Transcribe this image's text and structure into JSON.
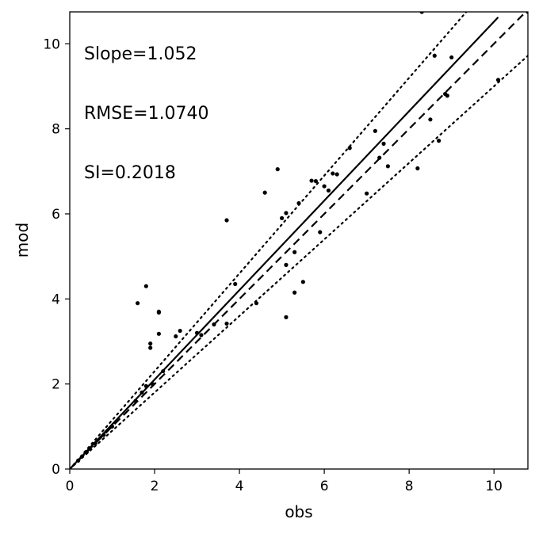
{
  "chart_data": {
    "type": "scatter",
    "xlabel": "obs",
    "ylabel": "mod",
    "xlim": [
      0,
      10.8
    ],
    "ylim": [
      0,
      10.75
    ],
    "xticks": [
      0,
      2,
      4,
      6,
      8,
      10
    ],
    "yticks": [
      0,
      2,
      4,
      6,
      8,
      10
    ],
    "grid": false,
    "annotations": [
      "Slope=1.052",
      "RMSE=1.0740",
      "SI=0.2018"
    ],
    "points": [
      [
        0.2,
        0.2
      ],
      [
        0.4,
        0.4
      ],
      [
        0.6,
        0.6
      ],
      [
        0.8,
        0.8
      ],
      [
        1.0,
        1.0
      ],
      [
        1.55,
        1.6
      ],
      [
        1.6,
        3.9
      ],
      [
        1.7,
        1.8
      ],
      [
        1.8,
        1.95
      ],
      [
        1.8,
        4.3
      ],
      [
        1.9,
        2.85
      ],
      [
        1.9,
        2.95
      ],
      [
        1.95,
        2.0
      ],
      [
        2.1,
        3.7
      ],
      [
        2.1,
        3.68
      ],
      [
        2.1,
        3.18
      ],
      [
        2.2,
        2.3
      ],
      [
        2.5,
        3.12
      ],
      [
        2.6,
        3.25
      ],
      [
        3.0,
        3.2
      ],
      [
        3.1,
        3.15
      ],
      [
        3.4,
        3.4
      ],
      [
        3.7,
        5.85
      ],
      [
        3.7,
        3.42
      ],
      [
        3.9,
        4.35
      ],
      [
        4.4,
        3.9
      ],
      [
        4.6,
        6.5
      ],
      [
        4.9,
        7.05
      ],
      [
        5.0,
        5.9
      ],
      [
        5.1,
        6.02
      ],
      [
        5.1,
        4.8
      ],
      [
        5.1,
        3.57
      ],
      [
        5.3,
        5.1
      ],
      [
        5.3,
        4.15
      ],
      [
        5.4,
        6.25
      ],
      [
        5.5,
        4.4
      ],
      [
        5.7,
        6.78
      ],
      [
        5.8,
        6.77
      ],
      [
        5.9,
        5.57
      ],
      [
        6.0,
        6.65
      ],
      [
        6.1,
        6.55
      ],
      [
        6.2,
        6.95
      ],
      [
        6.3,
        6.93
      ],
      [
        6.6,
        7.55
      ],
      [
        7.0,
        6.48
      ],
      [
        7.2,
        7.95
      ],
      [
        7.3,
        7.32
      ],
      [
        7.4,
        7.65
      ],
      [
        7.5,
        7.12
      ],
      [
        8.2,
        7.07
      ],
      [
        8.3,
        10.75
      ],
      [
        8.5,
        8.22
      ],
      [
        8.6,
        9.72
      ],
      [
        8.7,
        7.72
      ],
      [
        8.85,
        8.82
      ],
      [
        8.9,
        8.78
      ],
      [
        9.0,
        9.68
      ],
      [
        10.1,
        9.15
      ],
      [
        10.8,
        10.75
      ]
    ],
    "lines": [
      {
        "style": "solid",
        "slope": 1.052,
        "x_range": [
          0,
          10.1
        ]
      },
      {
        "style": "dashed",
        "slope": 1.0,
        "x_range": [
          0,
          10.8
        ]
      },
      {
        "style": "dotted",
        "slope": 1.15,
        "x_range": [
          0,
          10.8
        ]
      },
      {
        "style": "dotted",
        "slope": 0.9,
        "x_range": [
          0,
          10.8
        ]
      }
    ]
  }
}
